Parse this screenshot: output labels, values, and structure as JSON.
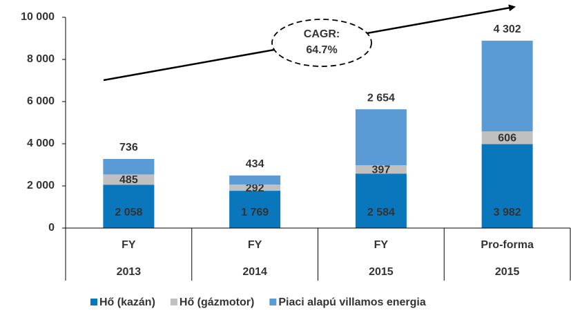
{
  "chart_data": {
    "type": "stacked_bar",
    "categories": [
      [
        "FY",
        "2013"
      ],
      [
        "FY",
        "2014"
      ],
      [
        "FY",
        "2015"
      ],
      [
        "Pro-forma",
        "2015"
      ]
    ],
    "series": [
      {
        "name": "Hő (kazán)",
        "color": "#0a77bd",
        "values": [
          2058,
          1769,
          2584,
          3982
        ],
        "value_labels": [
          "2 058",
          "1 769",
          "2 584",
          "3 982"
        ]
      },
      {
        "name": "Hő (gázmotor)",
        "color": "#c0c0c0",
        "values": [
          485,
          292,
          397,
          606
        ]
      },
      {
        "name": "Piaci alapú villamos energia",
        "color": "#5b9bd5",
        "values": [
          736,
          434,
          2654,
          4302
        ],
        "value_labels": [
          "736",
          "434",
          "2 654",
          "4 302"
        ]
      }
    ],
    "ylim": [
      0,
      10000
    ],
    "yticks": [
      0,
      {
        "value": 2000,
        "label": "2 000"
      },
      {
        "value": 4000,
        "label": "4 000"
      },
      {
        "value": 6000,
        "label": "6 000"
      },
      {
        "value": 8000,
        "label": "8 000"
      },
      {
        "value": 10000,
        "label": "10 000"
      }
    ],
    "annotation": [
      "CAGR:",
      "64.7%"
    ],
    "legend": "bottom"
  }
}
